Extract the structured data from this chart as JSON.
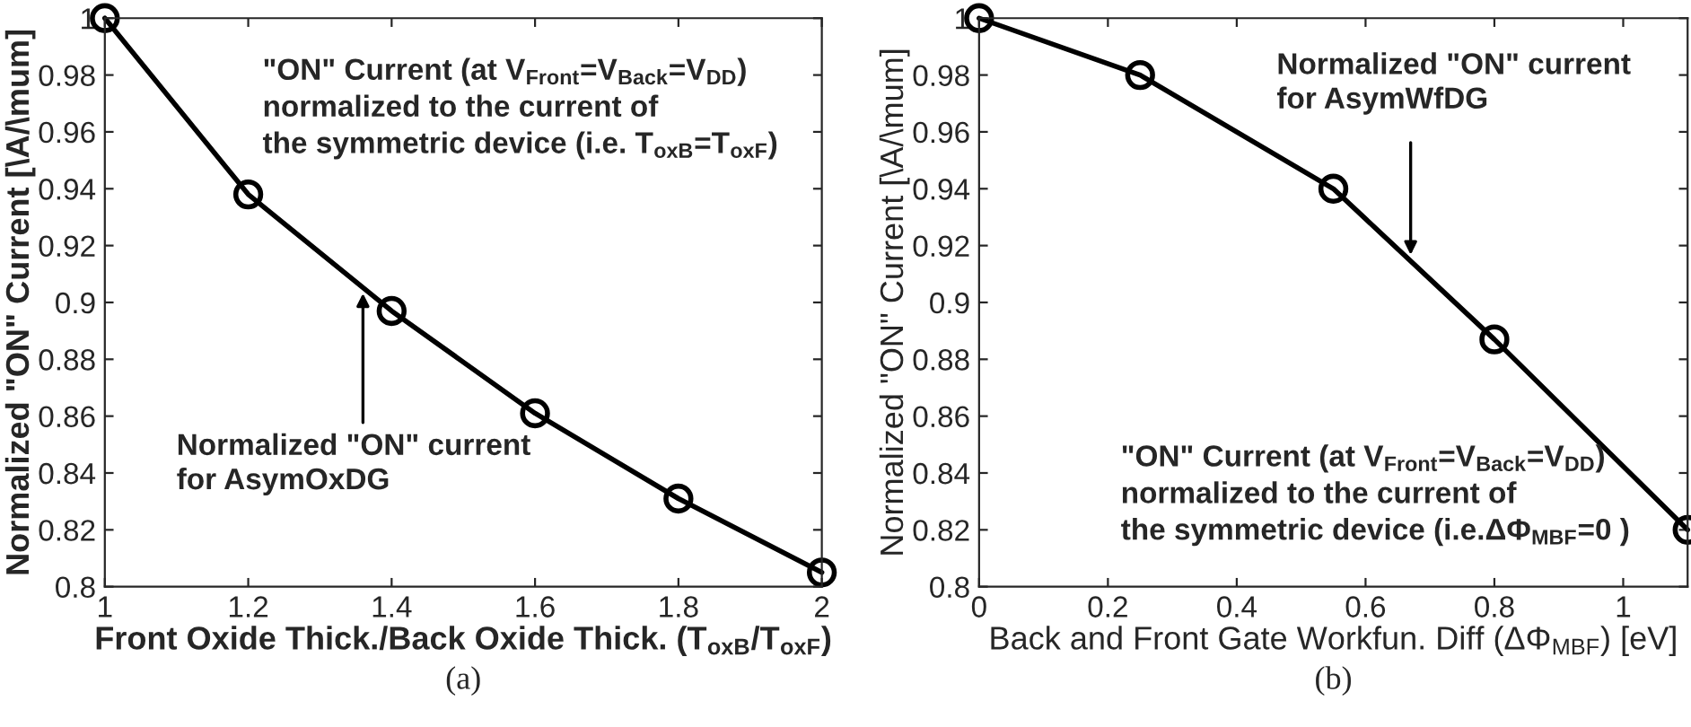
{
  "chart_data": [
    {
      "type": "line",
      "xlabel": "Front Oxide Thick./Back Oxide Thick. (T$_{oxB}$/T$_{oxF}$)",
      "ylabel": "Normalized \"ON\" Current [\\A/\\mum]",
      "x": [
        1,
        1.2,
        1.4,
        1.6,
        1.8,
        2
      ],
      "series": [
        {
          "color": "#000000",
          "values": [
            1.0,
            0.938,
            0.897,
            0.861,
            0.831,
            0.805
          ]
        }
      ],
      "xlim": [
        1,
        2
      ],
      "xticks": [
        1,
        1.2,
        1.4,
        1.6,
        1.8,
        2
      ],
      "ylim": [
        0.8,
        1.0
      ],
      "yticks": [
        0.8,
        0.82,
        0.84,
        0.86,
        0.88,
        0.9,
        0.92,
        0.94,
        0.96,
        0.98,
        1
      ],
      "marker": "circle",
      "line_style": "solid",
      "grid": false,
      "legend": false,
      "annotations": [
        "\"ON\" Current (at V$_{Front}$=V$_{Back}$=V$_{DD}$)\nnormalized to the current of\nthe symmetric device (i.e. T$_{oxB}$=T$_{oxF}$)",
        {
          "text": "Normalized \"ON\" current\nfor AsymOxDG",
          "x": 1.36,
          "y": 0.905
        },
        "(a)"
      ]
    },
    {
      "type": "line",
      "xlabel": "Back and Front Gate Workfun. Diff (ΔΦ$_{MBF}$) [eV]",
      "ylabel": "Normalized \"ON\" Current [\\A/\\mum]",
      "x": [
        0,
        0.25,
        0.55,
        0.8,
        1.1
      ],
      "series": [
        {
          "color": "#000000",
          "values": [
            1.0,
            0.98,
            0.94,
            0.887,
            0.82
          ]
        }
      ],
      "xlim": [
        0,
        1.1
      ],
      "xticks": [
        0,
        0.2,
        0.4,
        0.6,
        0.8,
        1
      ],
      "ylim": [
        0.8,
        1.0
      ],
      "yticks": [
        0.8,
        0.82,
        0.84,
        0.86,
        0.88,
        0.9,
        0.92,
        0.94,
        0.96,
        0.98,
        1
      ],
      "marker": "circle",
      "line_style": "solid",
      "grid": false,
      "legend": false,
      "annotations": [
        {
          "text": "Normalized \"ON\" current\nfor AsymWfDG",
          "x": 0.67,
          "y": 0.915
        },
        "\"ON\" Current (at V$_{Front}$=V$_{Back}$=V$_{DD}$)\nnormalized to the current of\nthe symmetric device (i.e.ΔΦ$_{MBF}$=0 )",
        "(b)"
      ]
    }
  ]
}
